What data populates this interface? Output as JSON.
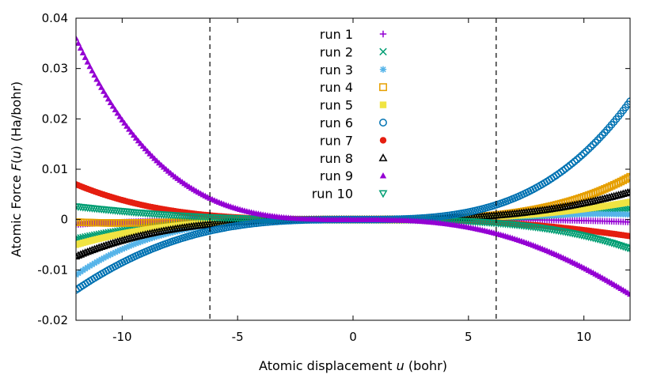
{
  "chart_data": {
    "type": "scatter",
    "xlabel": "Atomic displacement u (bohr)",
    "xlabel_parts": {
      "before": "Atomic displacement ",
      "var": "u",
      "after": " (bohr)"
    },
    "ylabel": "Atomic Force F(u) (Ha/bohr)",
    "ylabel_parts": {
      "before": "Atomic Force ",
      "var": "F",
      "open": "(",
      "arg": "u",
      "after": ") (Ha/bohr)"
    },
    "xlim": [
      -12,
      12
    ],
    "ylim": [
      -0.02,
      0.04
    ],
    "x_ticks": [
      -10,
      -5,
      0,
      5,
      10
    ],
    "x_tick_labels": [
      "-10",
      "-5",
      "0",
      "5",
      "10"
    ],
    "y_ticks": [
      -0.02,
      -0.01,
      0,
      0.01,
      0.02,
      0.03,
      0.04
    ],
    "y_tick_labels": [
      "-0.02",
      "-0.01",
      "0",
      "0.01",
      "0.02",
      "0.03",
      "0.04"
    ],
    "vertical_reference_lines": [
      -6.2,
      6.2
    ],
    "legend_position": "top-center",
    "sample_range": [
      -12,
      12
    ],
    "sample_step": 0.1,
    "series": [
      {
        "name": "run 1",
        "marker": "plus",
        "color": "#9400d3",
        "y_at_-12": -0.001,
        "y_at_12": -0.0005
      },
      {
        "name": "run 2",
        "marker": "cross",
        "color": "#009e73",
        "y_at_-12": -0.0038,
        "y_at_12": 0.0022
      },
      {
        "name": "run 3",
        "marker": "star",
        "color": "#56b4e9",
        "y_at_-12": -0.011,
        "y_at_12": 0.001
      },
      {
        "name": "run 4",
        "marker": "open-square",
        "color": "#e69f00",
        "y_at_-12": -0.0005,
        "y_at_12": 0.0085
      },
      {
        "name": "run 5",
        "marker": "filled-square",
        "color": "#f0e442",
        "y_at_-12": -0.005,
        "y_at_12": 0.0035
      },
      {
        "name": "run 6",
        "marker": "open-circle",
        "color": "#0072b2",
        "y_at_-12": -0.014,
        "y_at_12": 0.0235
      },
      {
        "name": "run 7",
        "marker": "filled-circle",
        "color": "#e51e10",
        "y_at_-12": 0.007,
        "y_at_12": -0.0033
      },
      {
        "name": "run 8",
        "marker": "open-triangle",
        "color": "#000000",
        "y_at_-12": -0.0073,
        "y_at_12": 0.0055
      },
      {
        "name": "run 9",
        "marker": "filled-triangle",
        "color": "#9400d3",
        "y_at_-12": 0.036,
        "y_at_12": -0.0148
      },
      {
        "name": "run 10",
        "marker": "open-triangle-down",
        "color": "#009e73",
        "y_at_-12": 0.0026,
        "y_at_12": -0.0058
      }
    ]
  }
}
